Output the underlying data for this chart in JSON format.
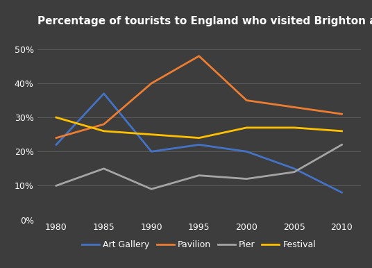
{
  "title": "Percentage of tourists to England who visited Brighton attractions",
  "years": [
    1980,
    1985,
    1990,
    1995,
    2000,
    2005,
    2010
  ],
  "series": {
    "Art Gallery": {
      "values": [
        22,
        37,
        20,
        22,
        20,
        15,
        8
      ],
      "color": "#4472C4"
    },
    "Pavilion": {
      "values": [
        24,
        28,
        40,
        48,
        35,
        33,
        31
      ],
      "color": "#ED7D31"
    },
    "Pier": {
      "values": [
        10,
        15,
        9,
        13,
        12,
        14,
        22
      ],
      "color": "#A5A5A5"
    },
    "Festival": {
      "values": [
        30,
        26,
        25,
        24,
        27,
        27,
        26
      ],
      "color": "#FFC000"
    }
  },
  "ylim": [
    0,
    55
  ],
  "yticks": [
    0,
    10,
    20,
    30,
    40,
    50
  ],
  "background_color": "#3d3d3d",
  "grid_color": "#5a5a5a",
  "text_color": "#ffffff",
  "title_fontsize": 11,
  "tick_fontsize": 9,
  "legend_fontsize": 9,
  "linewidth": 2.0
}
